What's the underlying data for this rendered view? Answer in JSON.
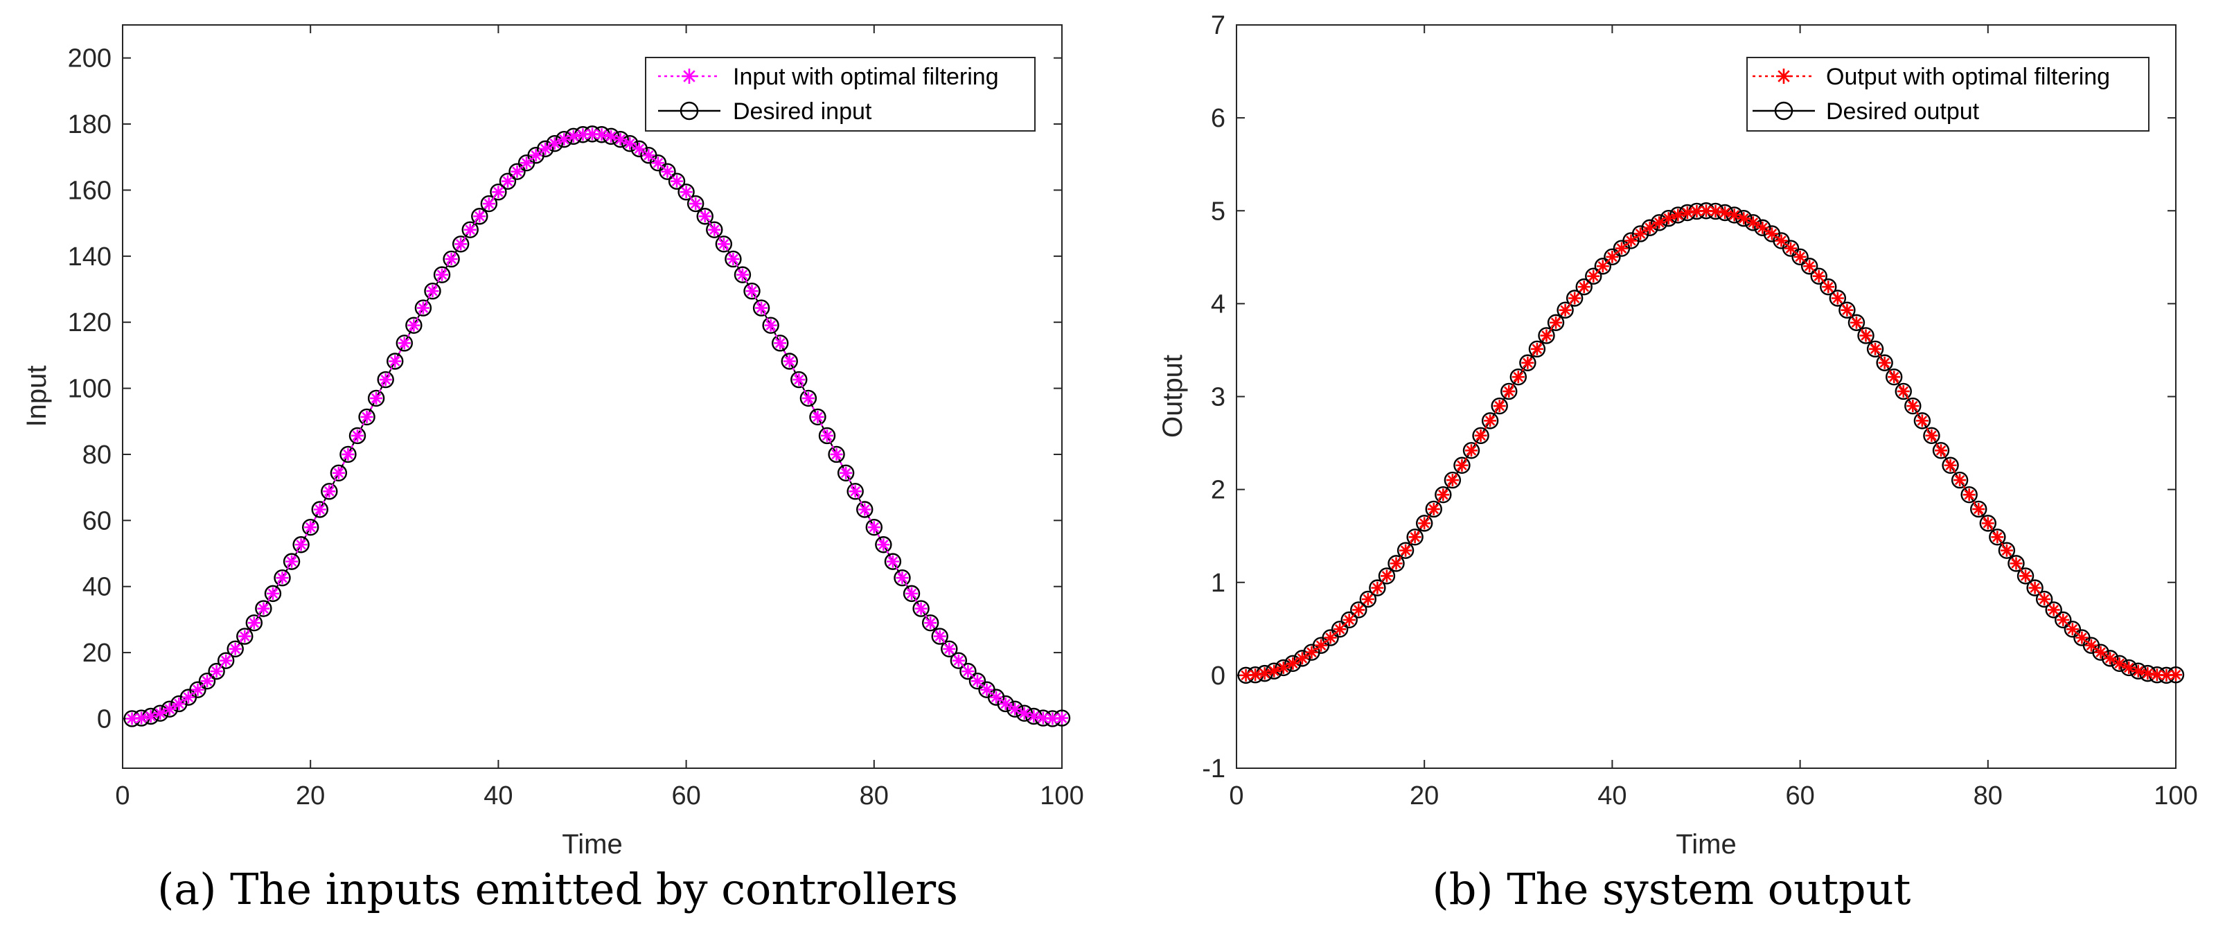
{
  "chart_data": [
    {
      "type": "line",
      "caption": "(a)  The inputs emitted by controllers",
      "xlabel": "Time",
      "ylabel": "Input",
      "xlim": [
        0,
        100
      ],
      "ylim": [
        -15,
        210
      ],
      "xticks": [
        0,
        20,
        40,
        60,
        80,
        100
      ],
      "yticks": [
        0,
        20,
        40,
        60,
        80,
        100,
        120,
        140,
        160,
        180,
        200
      ],
      "legend_position": "top-right",
      "curve": {
        "form": "peak * (1 - cos(2*pi*(t - t0)/(t1 - t0))) / 2",
        "t0": 1,
        "t1": 99,
        "peak": 177,
        "t_start": 1,
        "t_end": 100,
        "step": 1
      },
      "series": [
        {
          "name": "Input with optimal filtering",
          "color": "#ff00ff",
          "line_style": "dotted",
          "marker": "asterisk"
        },
        {
          "name": "Desired input",
          "color": "#000000",
          "line_style": "solid",
          "marker": "circle"
        }
      ]
    },
    {
      "type": "line",
      "caption": "(b)  The system output",
      "xlabel": "Time",
      "ylabel": "Output",
      "xlim": [
        0,
        100
      ],
      "ylim": [
        -1,
        7
      ],
      "xticks": [
        0,
        20,
        40,
        60,
        80,
        100
      ],
      "yticks": [
        -1,
        0,
        1,
        2,
        3,
        4,
        5,
        6,
        7
      ],
      "legend_position": "top-right",
      "curve": {
        "form": "peak * (1 - cos(2*pi*(t - t0)/(t1 - t0))) / 2",
        "t0": 1,
        "t1": 99,
        "peak": 5,
        "t_start": 1,
        "t_end": 100,
        "step": 1
      },
      "series": [
        {
          "name": "Output with optimal filtering",
          "color": "#ff0000",
          "line_style": "dotted",
          "marker": "asterisk"
        },
        {
          "name": "Desired output",
          "color": "#000000",
          "line_style": "solid",
          "marker": "circle"
        }
      ]
    }
  ]
}
